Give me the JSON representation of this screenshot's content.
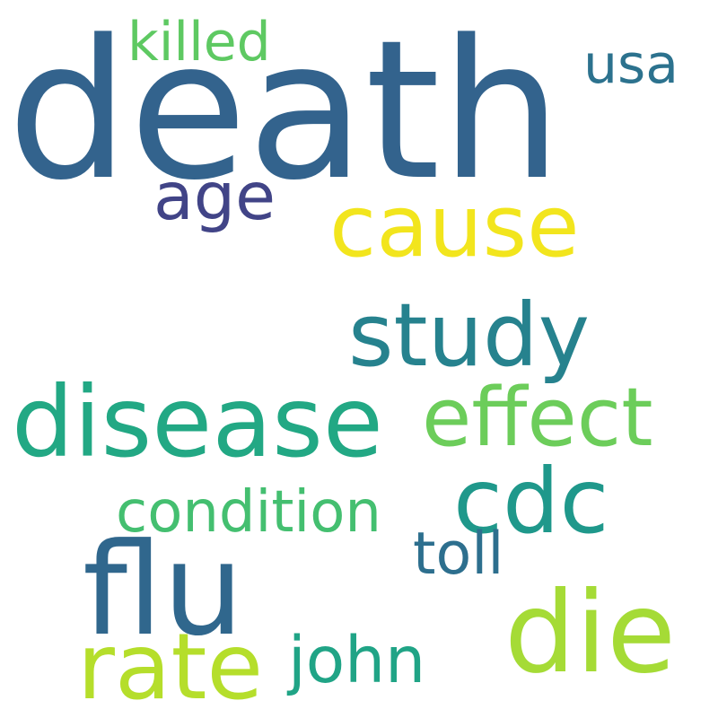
{
  "words": [
    {
      "key": "death",
      "text": "death",
      "color": "#33638d"
    },
    {
      "key": "killed",
      "text": "killed",
      "color": "#5ec962"
    },
    {
      "key": "usa",
      "text": "usa",
      "color": "#2c728e"
    },
    {
      "key": "age",
      "text": "age",
      "color": "#414487"
    },
    {
      "key": "cause",
      "text": "cause",
      "color": "#f2e51d"
    },
    {
      "key": "study",
      "text": "study",
      "color": "#26828e"
    },
    {
      "key": "disease",
      "text": "disease",
      "color": "#22a884"
    },
    {
      "key": "effect",
      "text": "effect",
      "color": "#6ccd5a"
    },
    {
      "key": "cdc",
      "text": "cdc",
      "color": "#1f988b"
    },
    {
      "key": "condition",
      "text": "condition",
      "color": "#44bf70"
    },
    {
      "key": "toll",
      "text": "toll",
      "color": "#2d6f8e"
    },
    {
      "key": "flu",
      "text": "flu",
      "color": "#30678d"
    },
    {
      "key": "die",
      "text": "die",
      "color": "#a5db36"
    },
    {
      "key": "rate",
      "text": "rate",
      "color": "#b5de2b"
    },
    {
      "key": "john",
      "text": "john",
      "color": "#20a486"
    }
  ]
}
